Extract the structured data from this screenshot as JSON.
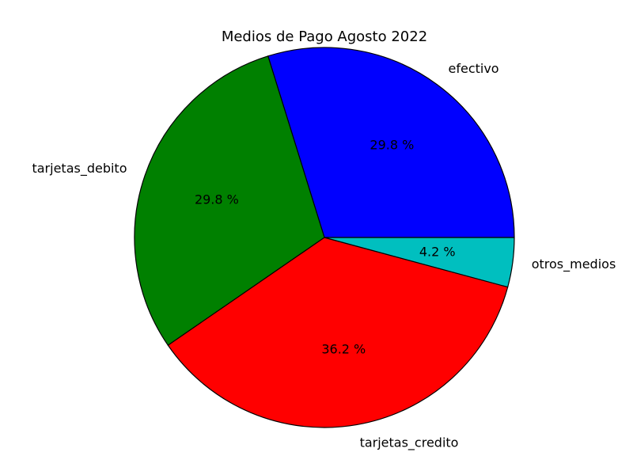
{
  "chart_data": {
    "type": "pie",
    "title": "Medios de Pago Agosto 2022",
    "start_angle_deg": 0,
    "direction": "counterclockwise",
    "slices": [
      {
        "label": "efectivo",
        "value": 29.8,
        "pct_label": "29.8 %",
        "color": "#0000ff"
      },
      {
        "label": "tarjetas_debito",
        "value": 29.8,
        "pct_label": "29.8 %",
        "color": "#008000"
      },
      {
        "label": "tarjetas_credito",
        "value": 36.2,
        "pct_label": "36.2 %",
        "color": "#ff0000"
      },
      {
        "label": "otros_medios",
        "value": 4.2,
        "pct_label": "4.2 %",
        "color": "#00bfbf"
      }
    ]
  }
}
